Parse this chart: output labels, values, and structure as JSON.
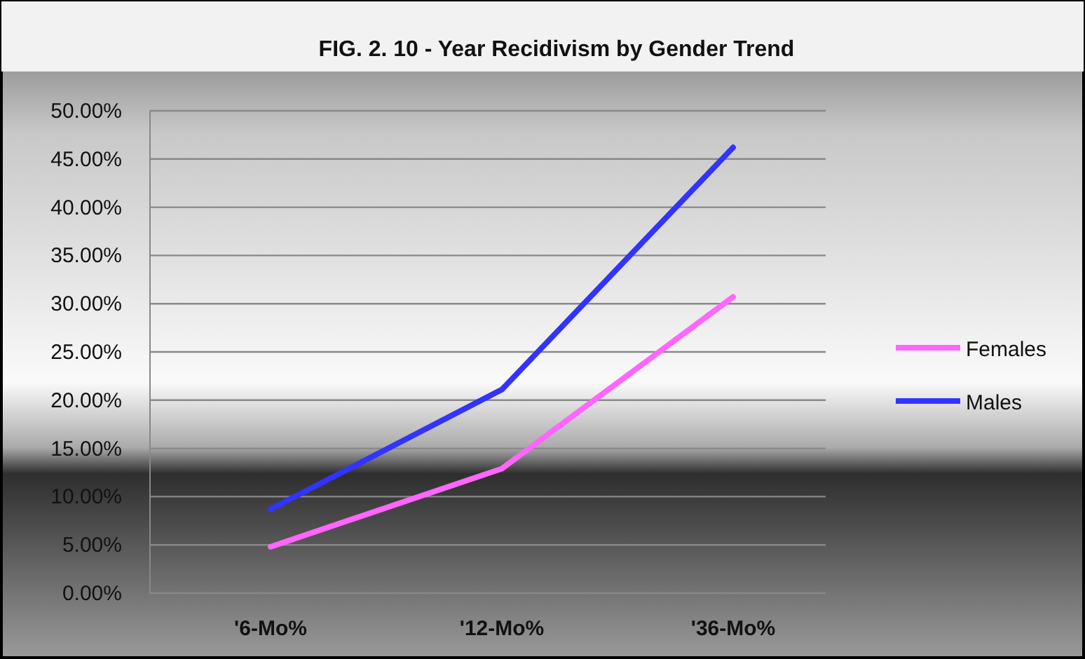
{
  "chart_data": {
    "type": "line",
    "title": "FIG. 2.  10 - Year Recidivism by Gender Trend",
    "categories": [
      "'6-Mo%",
      "'12-Mo%",
      "'36-Mo%"
    ],
    "series": [
      {
        "name": "Females",
        "color": "#ff66ff",
        "values": [
          4.8,
          12.9,
          30.7
        ]
      },
      {
        "name": "Males",
        "color": "#3333ff",
        "values": [
          8.7,
          21.1,
          46.2
        ]
      }
    ],
    "ylim": [
      0,
      50
    ],
    "yticks": [
      {
        "value": 0,
        "label": "0.00%"
      },
      {
        "value": 5,
        "label": "5.00%"
      },
      {
        "value": 10,
        "label": "10.00%"
      },
      {
        "value": 15,
        "label": "15.00%"
      },
      {
        "value": 20,
        "label": "20.00%"
      },
      {
        "value": 25,
        "label": "25.00%"
      },
      {
        "value": 30,
        "label": "30.00%"
      },
      {
        "value": 35,
        "label": "35.00%"
      },
      {
        "value": 40,
        "label": "40.00%"
      },
      {
        "value": 45,
        "label": "45.00%"
      },
      {
        "value": 50,
        "label": "50.00%"
      }
    ],
    "grid": "y",
    "legend": "right",
    "marker": "none",
    "line_style": "solid"
  }
}
